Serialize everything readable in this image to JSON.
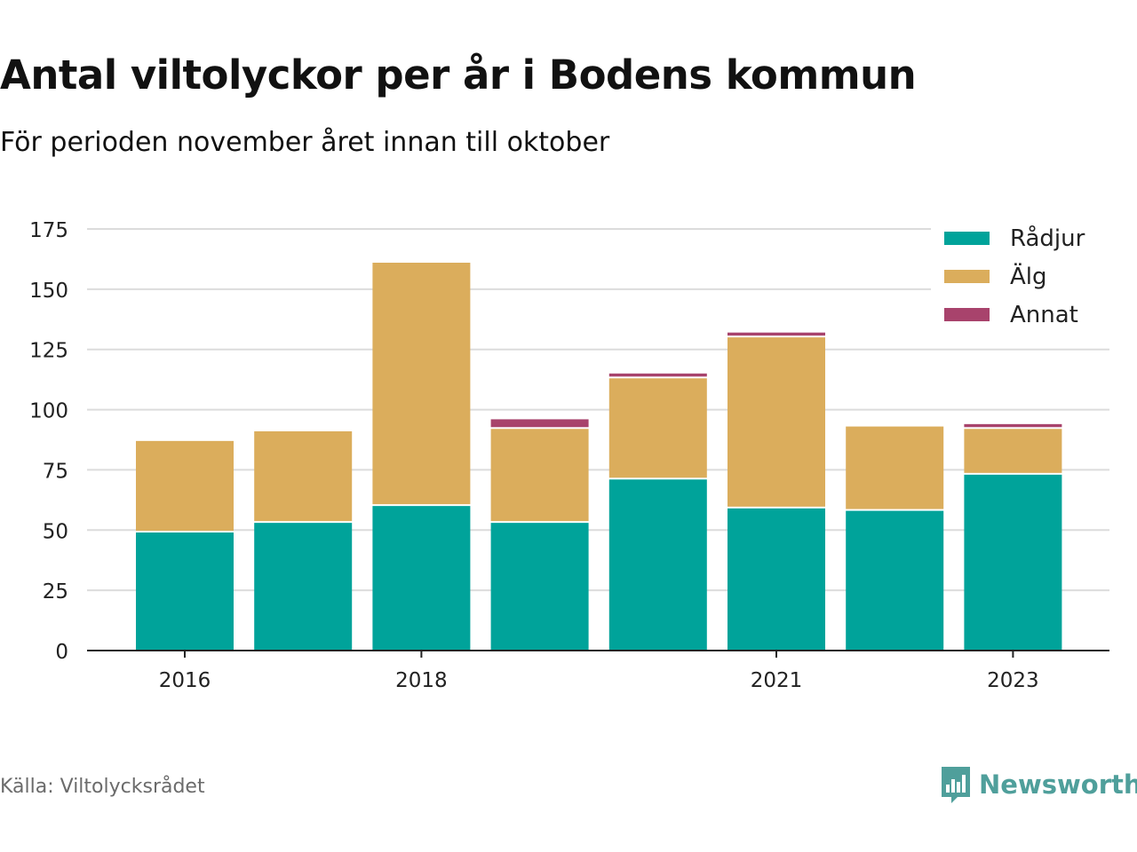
{
  "title": "Antal viltolyckor per år i Bodens kommun",
  "subtitle": "För perioden november året innan till oktober",
  "source": "Källa: Viltolycksrådet",
  "brand": {
    "name": "Newsworthy",
    "icon": "newsworthy-logo-icon",
    "color": "#4f9f9b"
  },
  "chart_data": {
    "type": "bar",
    "stacked": true,
    "x": [
      2016,
      2017,
      2018,
      2019,
      2020,
      2021,
      2022,
      2023
    ],
    "x_tick_labels": [
      "2016",
      "",
      "2018",
      "",
      "",
      "2021",
      "",
      "2023"
    ],
    "series": [
      {
        "name": "Rådjur",
        "color": "#00a39a",
        "values": [
          49,
          53,
          60,
          53,
          71,
          59,
          58,
          73
        ]
      },
      {
        "name": "Älg",
        "color": "#dbad5c",
        "values": [
          38,
          38,
          101,
          39,
          42,
          71,
          35,
          19
        ]
      },
      {
        "name": "Annat",
        "color": "#a8436c",
        "values": [
          0,
          0,
          0,
          4,
          2,
          2,
          0,
          2
        ]
      }
    ],
    "ylim": [
      0,
      175
    ],
    "y_ticks": [
      0,
      25,
      50,
      75,
      100,
      125,
      150,
      175
    ],
    "grid": true,
    "legend": "top-right"
  }
}
